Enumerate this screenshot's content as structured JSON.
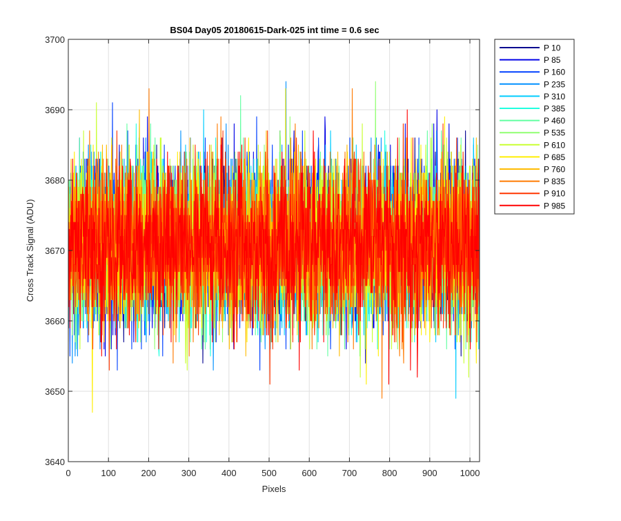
{
  "chart_data": {
    "type": "line",
    "title": "BS04 Day05 20180615-Dark-025 int time = 0.6 sec",
    "xlabel": "Pixels",
    "ylabel": "Cross Track Signal (ADU)",
    "xlim": [
      0,
      1024
    ],
    "ylim": [
      3640,
      3700
    ],
    "xticks": [
      0,
      100,
      200,
      300,
      400,
      500,
      600,
      700,
      800,
      900,
      1000
    ],
    "yticks": [
      3640,
      3650,
      3660,
      3670,
      3680,
      3690,
      3700
    ],
    "grid": true,
    "legend_position": "outside-top-right",
    "series": [
      {
        "name": "P 10",
        "color": "#00008f",
        "mean": 3671,
        "spread": 7.5
      },
      {
        "name": "P 85",
        "color": "#0000e6",
        "mean": 3671,
        "spread": 7.5
      },
      {
        "name": "P 160",
        "color": "#0040ff",
        "mean": 3671,
        "spread": 7.5
      },
      {
        "name": "P 235",
        "color": "#0090ff",
        "mean": 3671,
        "spread": 7.5
      },
      {
        "name": "P 310",
        "color": "#00ccff",
        "mean": 3671,
        "spread": 7.5
      },
      {
        "name": "P 385",
        "color": "#20ffe0",
        "mean": 3671,
        "spread": 7.5
      },
      {
        "name": "P 460",
        "color": "#60ffa0",
        "mean": 3671,
        "spread": 7.5
      },
      {
        "name": "P 535",
        "color": "#90ff70",
        "mean": 3671,
        "spread": 7.5
      },
      {
        "name": "P 610",
        "color": "#c8ff30",
        "mean": 3671,
        "spread": 7.5
      },
      {
        "name": "P 685",
        "color": "#ffee00",
        "mean": 3671,
        "spread": 7.5
      },
      {
        "name": "P 760",
        "color": "#ffbb00",
        "mean": 3671,
        "spread": 7.5
      },
      {
        "name": "P 835",
        "color": "#ff7a00",
        "mean": 3671,
        "spread": 7.5
      },
      {
        "name": "P 910",
        "color": "#ff3600",
        "mean": 3671,
        "spread": 7.5
      },
      {
        "name": "P 985",
        "color": "#ff0000",
        "mean": 3671,
        "spread": 7.5
      }
    ]
  }
}
